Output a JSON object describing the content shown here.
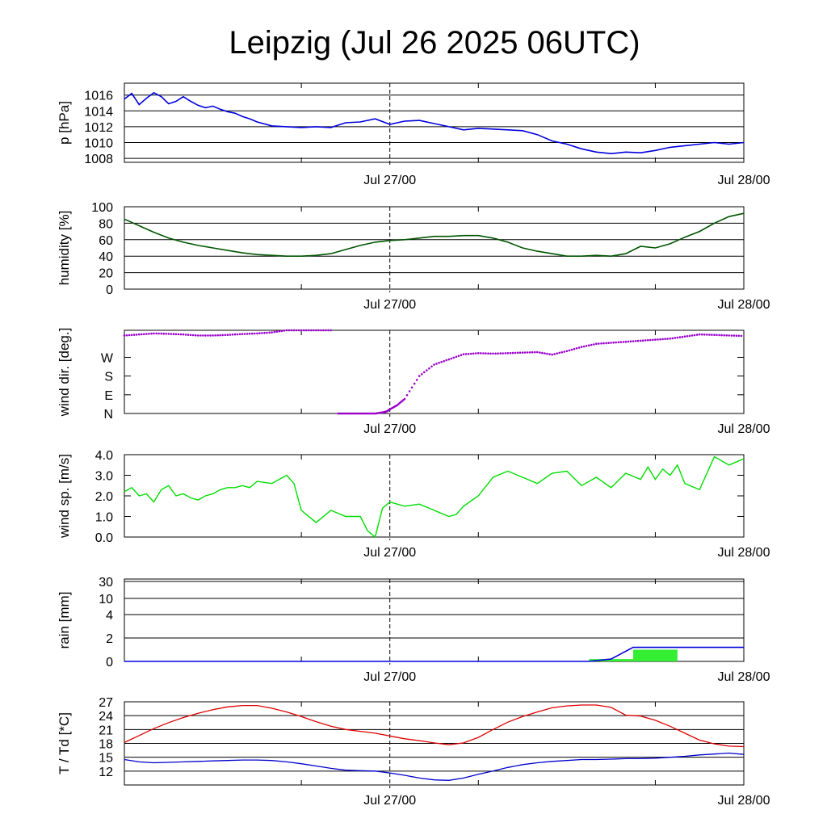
{
  "title": "Leipzig (Jul 26 2025 06UTC)",
  "x_tick_labels": [
    "Jul 27/00",
    "Jul 28/00"
  ],
  "colors": {
    "pressure": "#0000dd",
    "humidity": "#005500",
    "wind_dir": "#9900cc",
    "wind_sp": "#00dd00",
    "rain_bar": "#33ee33",
    "rain_line": "#0000dd",
    "temperature": "#dd0000",
    "dewpoint": "#0000cc"
  },
  "chart_data": [
    {
      "type": "line",
      "ylabel": "p [hPa]",
      "ylim": [
        1007.5,
        1017.5
      ],
      "yticks": [
        1008,
        1010,
        1012,
        1014,
        1016
      ],
      "grid": true,
      "x": [
        0,
        0.5,
        1,
        1.5,
        2,
        2.5,
        3,
        3.5,
        4,
        4.5,
        5,
        5.5,
        6,
        6.5,
        7,
        7.5,
        8,
        8.5,
        9,
        10,
        11,
        12,
        13,
        14,
        15,
        16,
        17,
        18,
        19,
        20,
        21,
        22,
        23,
        24,
        25,
        26,
        27,
        28,
        29,
        30,
        31,
        32,
        33,
        34,
        35,
        36,
        37,
        38,
        39,
        40,
        41,
        42
      ],
      "values": [
        1015.5,
        1016.2,
        1014.8,
        1015.6,
        1016.3,
        1015.8,
        1014.9,
        1015.2,
        1015.8,
        1015.2,
        1014.7,
        1014.4,
        1014.6,
        1014.2,
        1013.9,
        1013.7,
        1013.3,
        1013.0,
        1012.6,
        1012.1,
        1012.0,
        1011.9,
        1012.0,
        1011.9,
        1012.5,
        1012.6,
        1013.0,
        1012.3,
        1012.7,
        1012.8,
        1012.4,
        1012.0,
        1011.6,
        1011.8,
        1011.7,
        1011.6,
        1011.5,
        1011.0,
        1010.2,
        1009.8,
        1009.2,
        1008.8,
        1008.6,
        1008.8,
        1008.7,
        1009.0,
        1009.4,
        1009.6,
        1009.8,
        1010.0,
        1009.8,
        1010.0
      ]
    },
    {
      "type": "line",
      "ylabel": "humidity [%]",
      "ylim": [
        0,
        100
      ],
      "yticks": [
        0,
        20,
        40,
        60,
        80,
        100
      ],
      "grid": true,
      "x": [
        0,
        1,
        2,
        3,
        4,
        5,
        6,
        7,
        8,
        9,
        10,
        11,
        12,
        13,
        14,
        15,
        16,
        17,
        18,
        19,
        20,
        21,
        22,
        23,
        24,
        25,
        26,
        27,
        28,
        29,
        30,
        31,
        32,
        33,
        34,
        35,
        36,
        37,
        38,
        39,
        40,
        41,
        42
      ],
      "values": [
        85,
        77,
        69,
        62,
        57,
        53,
        50,
        47,
        44,
        42,
        41,
        40,
        40,
        41,
        43,
        48,
        53,
        57,
        59,
        60,
        62,
        64,
        64,
        65,
        65,
        62,
        57,
        50,
        46,
        43,
        40,
        40,
        41,
        40,
        43,
        52,
        50,
        55,
        63,
        70,
        80,
        88,
        92
      ]
    },
    {
      "type": "scatter",
      "ylabel": "wind dir. [deg.]",
      "ylim": [
        0,
        400
      ],
      "yticks": [
        0,
        90,
        180,
        270
      ],
      "tick_labels": [
        "N",
        "E",
        "S",
        "W"
      ],
      "grid": false,
      "x": [
        0,
        1,
        2,
        3,
        4,
        5,
        6,
        7,
        8,
        9,
        10,
        11,
        12,
        13,
        14,
        14.5,
        15,
        15.5,
        16,
        16.5,
        17,
        17.5,
        17.8,
        18,
        18.5,
        19,
        20,
        21,
        22,
        23,
        24,
        25,
        26,
        27,
        28,
        29,
        30,
        31,
        32,
        33,
        34,
        35,
        36,
        37,
        38,
        39,
        40,
        41,
        42
      ],
      "values": [
        375,
        380,
        385,
        383,
        380,
        375,
        375,
        378,
        382,
        385,
        390,
        400,
        402,
        400,
        400,
        0,
        0,
        0,
        -2,
        0,
        0,
        5,
        10,
        20,
        40,
        70,
        180,
        235,
        260,
        285,
        290,
        288,
        290,
        293,
        295,
        283,
        300,
        320,
        335,
        340,
        345,
        350,
        355,
        360,
        370,
        380,
        378,
        375,
        373
      ]
    },
    {
      "type": "line",
      "ylabel": "wind sp. [m/s]",
      "ylim": [
        0,
        4
      ],
      "yticks": [
        0.0,
        1.0,
        2.0,
        3.0,
        4.0
      ],
      "grid": false,
      "x": [
        0,
        0.5,
        1,
        1.5,
        2,
        2.5,
        3,
        3.5,
        4,
        4.5,
        5,
        5.5,
        6,
        6.5,
        7,
        7.5,
        8,
        8.5,
        9,
        10,
        11,
        11.5,
        12,
        13,
        14,
        15,
        16,
        16.5,
        17,
        17.5,
        18,
        18.5,
        19,
        20,
        21,
        22,
        22.5,
        23,
        24,
        25,
        26,
        27,
        28,
        29,
        30,
        31,
        32,
        33,
        34,
        35,
        35.5,
        36,
        36.5,
        37,
        37.5,
        38,
        39,
        40,
        41,
        42
      ],
      "values": [
        2.2,
        2.4,
        2.0,
        2.1,
        1.7,
        2.3,
        2.5,
        2.0,
        2.1,
        1.9,
        1.8,
        2.0,
        2.1,
        2.3,
        2.4,
        2.4,
        2.5,
        2.4,
        2.7,
        2.6,
        3.0,
        2.6,
        1.3,
        0.7,
        1.3,
        1.0,
        1.0,
        0.3,
        0.0,
        1.4,
        1.7,
        1.6,
        1.5,
        1.6,
        1.3,
        1.0,
        1.1,
        1.5,
        2.0,
        2.9,
        3.2,
        2.9,
        2.6,
        3.1,
        3.2,
        2.5,
        2.9,
        2.4,
        3.1,
        2.8,
        3.4,
        2.8,
        3.3,
        3.0,
        3.5,
        2.6,
        2.3,
        3.9,
        3.5,
        3.8
      ]
    },
    {
      "type": "bar",
      "ylabel": "rain [mm]",
      "yticks": [
        0,
        2,
        4,
        10,
        30
      ],
      "grid": true,
      "bars": [
        {
          "x0": 31.5,
          "x1": 34.5,
          "value": 0.2
        },
        {
          "x0": 34.5,
          "x1": 37.5,
          "value": 1.0
        }
      ],
      "cumulative": {
        "x": [
          0,
          31.5,
          33,
          34.5,
          42
        ],
        "values": [
          0,
          0,
          0.2,
          1.2,
          1.2
        ]
      }
    },
    {
      "type": "line",
      "ylabel": "T / Td [*C]",
      "ylim": [
        9,
        27
      ],
      "yticks": [
        12,
        15,
        18,
        21,
        24,
        27
      ],
      "grid": true,
      "series": [
        {
          "key": "temperature",
          "x": [
            0,
            1,
            2,
            3,
            4,
            5,
            6,
            7,
            8,
            9,
            10,
            11,
            12,
            13,
            14,
            15,
            16,
            17,
            18,
            19,
            20,
            21,
            22,
            23,
            24,
            25,
            26,
            27,
            28,
            29,
            30,
            31,
            32,
            33,
            34,
            35,
            36,
            37,
            38,
            39,
            40,
            41,
            42
          ],
          "values": [
            18.2,
            19.7,
            21.2,
            22.5,
            23.6,
            24.5,
            25.3,
            25.9,
            26.2,
            26.2,
            25.6,
            24.8,
            23.8,
            22.7,
            21.7,
            21.0,
            20.6,
            20.2,
            19.6,
            19.0,
            18.6,
            18.1,
            17.7,
            18.1,
            19.3,
            21.0,
            22.6,
            23.8,
            24.8,
            25.7,
            26.1,
            26.3,
            26.3,
            25.8,
            24.1,
            23.9,
            23.0,
            21.7,
            20.2,
            18.7,
            17.9,
            17.4,
            17.3
          ]
        },
        {
          "key": "dewpoint",
          "x": [
            0,
            1,
            2,
            3,
            4,
            5,
            6,
            7,
            8,
            9,
            10,
            11,
            12,
            13,
            14,
            15,
            16,
            17,
            18,
            19,
            20,
            21,
            22,
            23,
            24,
            25,
            26,
            27,
            28,
            29,
            30,
            31,
            32,
            33,
            34,
            35,
            36,
            37,
            38,
            39,
            40,
            41,
            42
          ],
          "values": [
            14.5,
            14.0,
            13.8,
            13.9,
            14.0,
            14.1,
            14.2,
            14.3,
            14.4,
            14.4,
            14.3,
            14.0,
            13.6,
            13.1,
            12.6,
            12.2,
            12.1,
            12.0,
            11.6,
            11.1,
            10.5,
            10.1,
            10.0,
            10.5,
            11.3,
            12.0,
            12.8,
            13.4,
            13.8,
            14.1,
            14.3,
            14.5,
            14.5,
            14.6,
            14.7,
            14.7,
            14.8,
            15.0,
            15.2,
            15.5,
            15.7,
            15.9,
            15.6
          ]
        }
      ]
    }
  ]
}
